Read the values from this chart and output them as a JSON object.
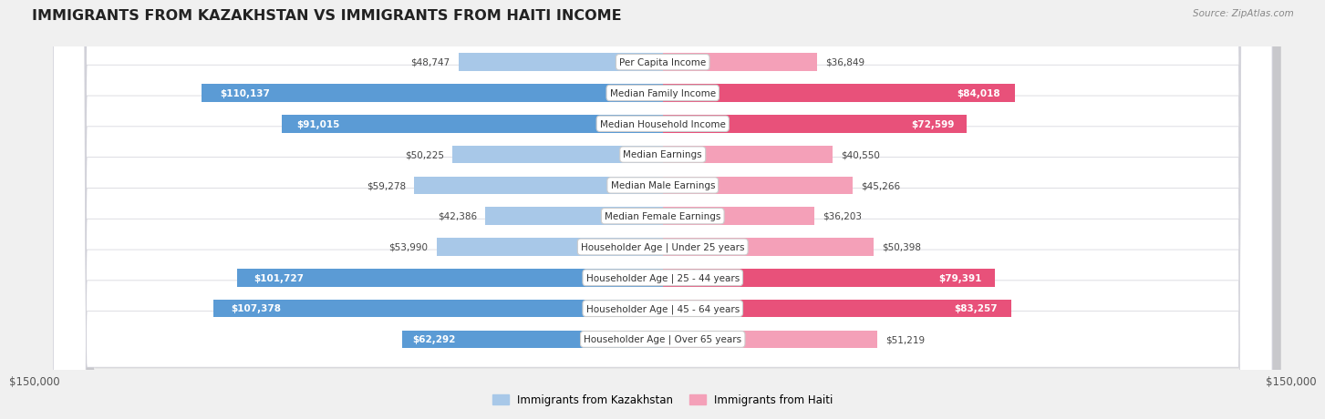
{
  "title": "IMMIGRANTS FROM KAZAKHSTAN VS IMMIGRANTS FROM HAITI INCOME",
  "source": "Source: ZipAtlas.com",
  "categories": [
    "Per Capita Income",
    "Median Family Income",
    "Median Household Income",
    "Median Earnings",
    "Median Male Earnings",
    "Median Female Earnings",
    "Householder Age | Under 25 years",
    "Householder Age | 25 - 44 years",
    "Householder Age | 45 - 64 years",
    "Householder Age | Over 65 years"
  ],
  "kazakhstan_values": [
    48747,
    110137,
    91015,
    50225,
    59278,
    42386,
    53990,
    101727,
    107378,
    62292
  ],
  "haiti_values": [
    36849,
    84018,
    72599,
    40550,
    45266,
    36203,
    50398,
    79391,
    83257,
    51219
  ],
  "kazakhstan_labels": [
    "$48,747",
    "$110,137",
    "$91,015",
    "$50,225",
    "$59,278",
    "$42,386",
    "$53,990",
    "$101,727",
    "$107,378",
    "$62,292"
  ],
  "haiti_labels": [
    "$36,849",
    "$84,018",
    "$72,599",
    "$40,550",
    "$45,266",
    "$36,203",
    "$50,398",
    "$79,391",
    "$83,257",
    "$51,219"
  ],
  "kazakhstan_color_light": "#a8c8e8",
  "kazakhstan_color_dark": "#5b9bd5",
  "haiti_color_light": "#f4a0b8",
  "haiti_color_dark": "#e8517a",
  "threshold": 60000,
  "axis_max": 150000,
  "axis_label_left": "$150,000",
  "axis_label_right": "$150,000",
  "legend_kazakhstan": "Immigrants from Kazakhstan",
  "legend_haiti": "Immigrants from Haiti",
  "background_color": "#f0f0f0",
  "row_bg_color": "#ffffff",
  "row_border_color": "#d0d0d8"
}
